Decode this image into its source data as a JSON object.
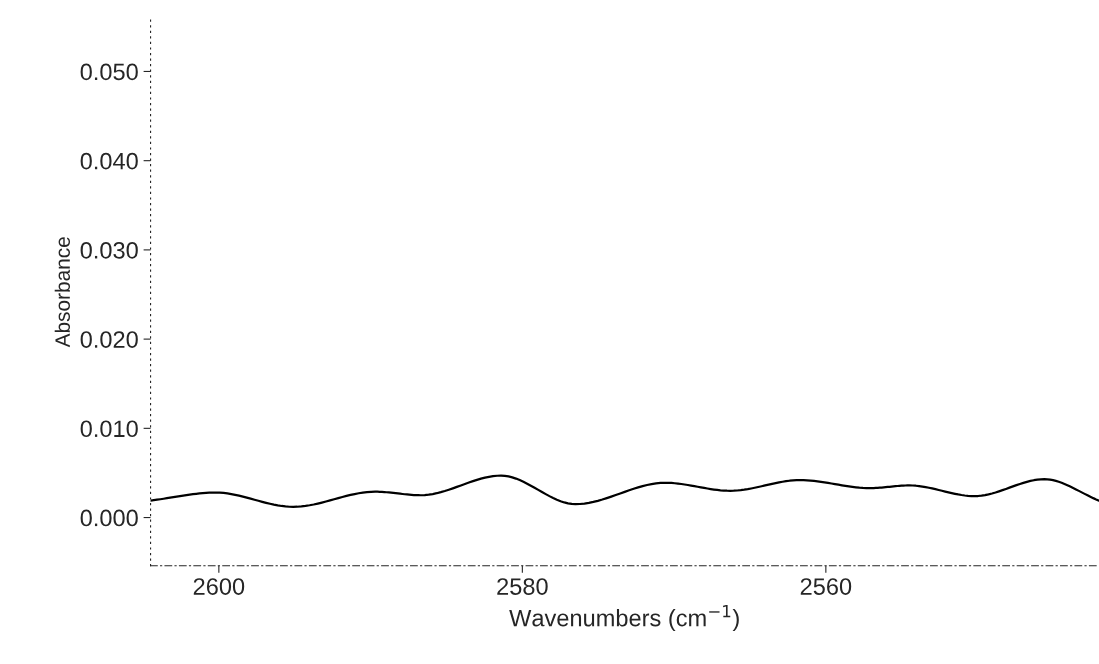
{
  "chart_data": {
    "type": "line",
    "xlabel": "Wavenumbers (cm$^{−1}$)",
    "ylabel": "Absorbance",
    "x": [
      2604.5,
      2600.2,
      2595.1,
      2589.7,
      2586.7,
      2581.4,
      2576.5,
      2570.6,
      2566.3,
      2561.7,
      2557.1,
      2554.5,
      2550.2,
      2545.6,
      2542.0
    ],
    "series": [
      {
        "color": "#000000",
        "values": [
          0.0019,
          0.0028,
          0.0012,
          0.0029,
          0.0025,
          0.0047,
          0.0015,
          0.0039,
          0.003,
          0.0042,
          0.0033,
          0.0036,
          0.0024,
          0.0043,
          0.0019
        ]
      }
    ],
    "xlim": [
      2604.5,
      2542.0
    ],
    "ylim": [
      -0.0054,
      0.056
    ],
    "xticks": [
      2600,
      2580,
      2560
    ],
    "yticks": [
      {
        "value": 0.0,
        "label": "0.000"
      },
      {
        "value": 0.01,
        "label": "0.010"
      },
      {
        "value": 0.02,
        "label": "0.020"
      },
      {
        "value": 0.03,
        "label": "0.030"
      },
      {
        "value": 0.04,
        "label": "0.040"
      },
      {
        "value": 0.05,
        "label": "0.050"
      }
    ],
    "grid": false,
    "legend": false,
    "marker": "none",
    "line_style": "solid"
  }
}
